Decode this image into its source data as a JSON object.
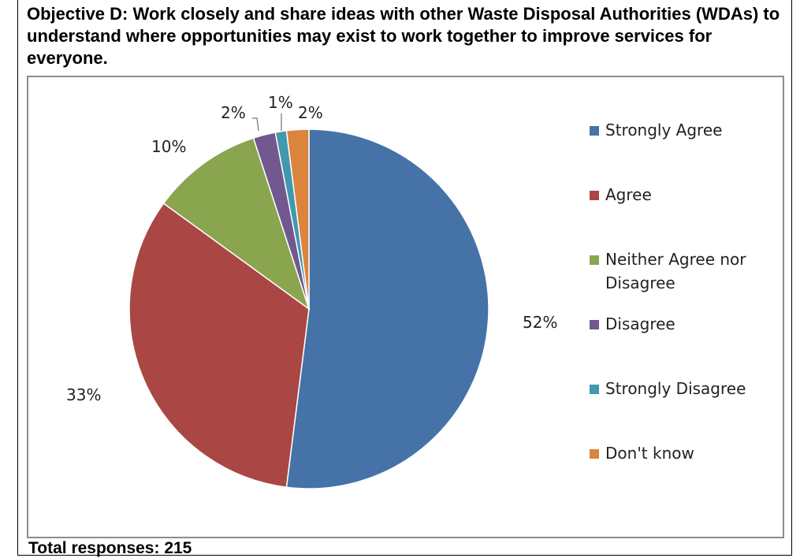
{
  "heading": "Objective D: Work closely and share ideas with other Waste Disposal Authorities (WDAs) to understand where opportunities may exist to work together to improve services for everyone.",
  "footer": "Total responses: 215",
  "chart_data": {
    "type": "pie",
    "title": "",
    "slices": [
      {
        "label": "Strongly Agree",
        "value": 52,
        "value_label": "52%",
        "color": "#4572a7"
      },
      {
        "label": "Agree",
        "value": 33,
        "value_label": "33%",
        "color": "#aa4643"
      },
      {
        "label": "Neither Agree nor Disagree",
        "value": 10,
        "value_label": "10%",
        "color": "#89a54e"
      },
      {
        "label": "Disagree",
        "value": 2,
        "value_label": "2%",
        "color": "#71588f"
      },
      {
        "label": "Strongly Disagree",
        "value": 1,
        "value_label": "1%",
        "color": "#4198af"
      },
      {
        "label": "Don't know",
        "value": 2,
        "value_label": "2%",
        "color": "#db843d"
      }
    ],
    "legend_placement": "right"
  }
}
